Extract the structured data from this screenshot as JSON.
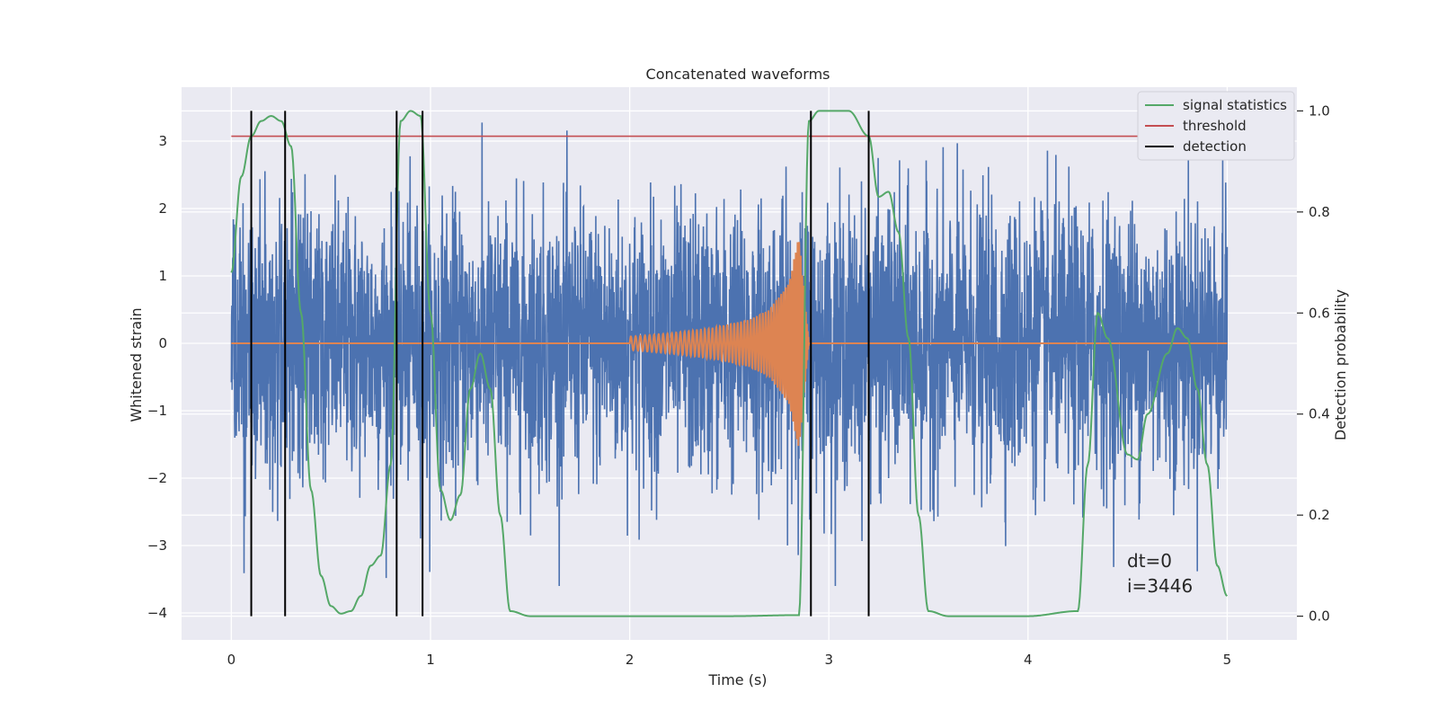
{
  "chart_data": {
    "type": "line",
    "title": "Concatenated waveforms",
    "xlabel": "Time (s)",
    "ylabel": "Whitened strain",
    "y2label": "Detection probability",
    "xlim": [
      -0.25,
      5.35
    ],
    "ylim": [
      -4.4,
      3.8
    ],
    "y2lim": [
      -0.047,
      1.047
    ],
    "xticks": [
      0,
      1,
      2,
      3,
      4,
      5
    ],
    "yticks": [
      -4,
      -3,
      -2,
      -1,
      0,
      1,
      2,
      3
    ],
    "y2ticks": [
      0.0,
      0.2,
      0.4,
      0.6,
      0.8,
      1.0
    ],
    "xtick_labels": [
      "0",
      "1",
      "2",
      "3",
      "4",
      "5"
    ],
    "ytick_labels": [
      "−4",
      "−3",
      "−2",
      "−1",
      "0",
      "1",
      "2",
      "3"
    ],
    "y2tick_labels": [
      "0.0",
      "0.2",
      "0.4",
      "0.6",
      "0.8",
      "1.0"
    ],
    "grid": true,
    "legend_position": "top-right",
    "legend": [
      {
        "label": "signal statistics",
        "color": "#55a868"
      },
      {
        "label": "threshold",
        "color": "#c44e52"
      },
      {
        "label": "detection",
        "color": "#000000"
      }
    ],
    "colors": {
      "strain": "#4c72b0",
      "waveform": "#dd8452",
      "signal_statistics": "#55a868",
      "threshold": "#c44e52",
      "detection": "#000000",
      "plot_background": "#eaeaf2"
    },
    "strain_series": {
      "name": "whitened strain",
      "x_range": [
        0,
        5
      ],
      "mean": 0.0,
      "std": 1.0,
      "min": -3.6,
      "max": 3.45,
      "note": "random noise"
    },
    "waveform_series": {
      "name": "injected waveform",
      "x": [
        0,
        2.0,
        2.2,
        2.4,
        2.6,
        2.7,
        2.8,
        2.85,
        2.9,
        5.0
      ],
      "y_envelope": [
        0,
        0.1,
        0.15,
        0.22,
        0.35,
        0.5,
        0.9,
        1.6,
        0,
        0
      ]
    },
    "signal_statistics": {
      "axis": "right",
      "x": [
        0.0,
        0.05,
        0.1,
        0.15,
        0.2,
        0.25,
        0.3,
        0.35,
        0.4,
        0.45,
        0.5,
        0.55,
        0.6,
        0.65,
        0.7,
        0.75,
        0.8,
        0.85,
        0.9,
        0.95,
        1.0,
        1.05,
        1.1,
        1.15,
        1.2,
        1.25,
        1.3,
        1.35,
        1.4,
        1.5,
        2.0,
        2.5,
        2.85,
        2.9,
        2.95,
        3.0,
        3.1,
        3.2,
        3.25,
        3.3,
        3.35,
        3.4,
        3.45,
        3.5,
        3.6,
        4.0,
        4.25,
        4.3,
        4.35,
        4.4,
        4.5,
        4.55,
        4.6,
        4.7,
        4.75,
        4.8,
        4.85,
        4.9,
        4.95,
        5.0
      ],
      "y": [
        0.68,
        0.87,
        0.95,
        0.98,
        0.99,
        0.98,
        0.93,
        0.6,
        0.25,
        0.08,
        0.02,
        0.005,
        0.01,
        0.04,
        0.1,
        0.12,
        0.3,
        0.98,
        1.0,
        0.99,
        0.6,
        0.25,
        0.19,
        0.24,
        0.45,
        0.52,
        0.45,
        0.2,
        0.01,
        0.0,
        0.0,
        0.0,
        0.002,
        0.98,
        1.0,
        1.0,
        1.0,
        0.95,
        0.83,
        0.84,
        0.76,
        0.55,
        0.2,
        0.01,
        0.0,
        0.0,
        0.01,
        0.3,
        0.6,
        0.55,
        0.32,
        0.31,
        0.4,
        0.52,
        0.57,
        0.55,
        0.45,
        0.3,
        0.1,
        0.04
      ]
    },
    "threshold": {
      "axis": "right",
      "value": 0.95,
      "x_range": [
        0,
        5.1
      ]
    },
    "detections": [
      0.1,
      0.27,
      0.83,
      0.96,
      2.91,
      3.2
    ],
    "annotations": [
      "dt=0",
      "i=3446"
    ]
  }
}
